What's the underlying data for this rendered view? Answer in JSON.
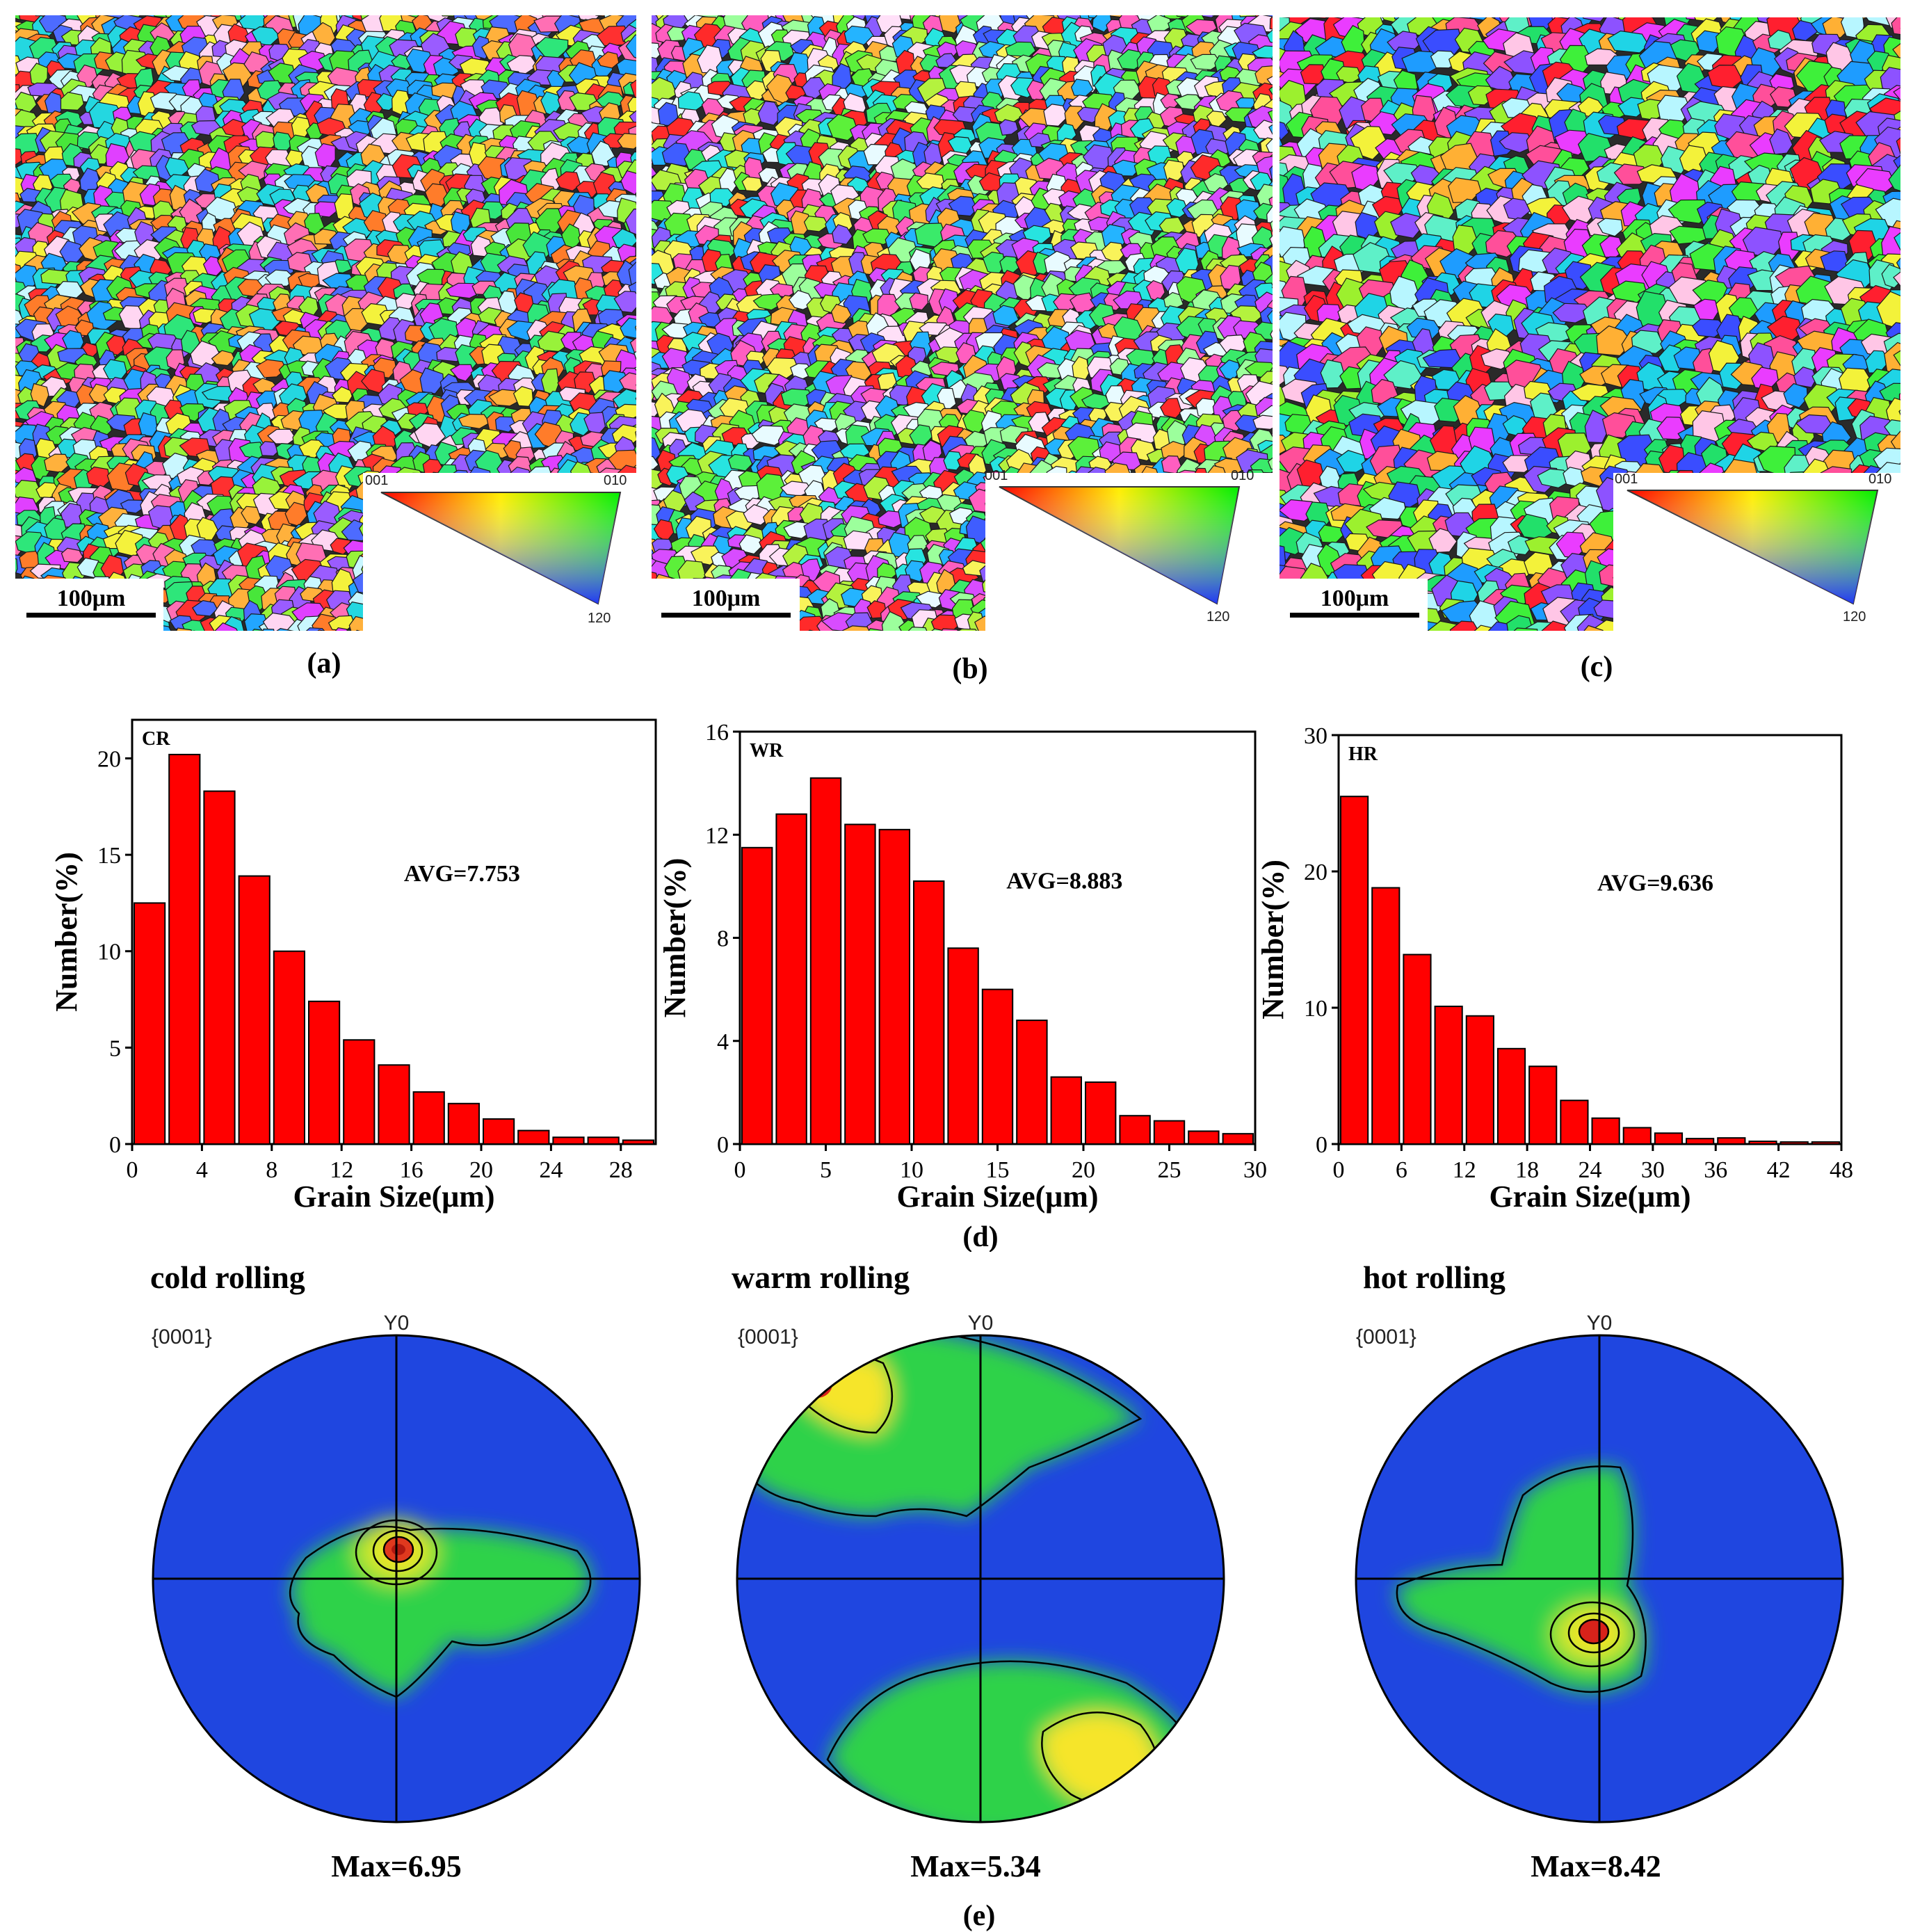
{
  "ebsd_panels": [
    {
      "label": "(a)",
      "scale_bar": "100μm",
      "ipf": {
        "c1": "001",
        "c2": "010",
        "c3": "120"
      }
    },
    {
      "label": "(b)",
      "scale_bar": "100μm",
      "ipf": {
        "c1": "001",
        "c2": "010",
        "c3": "120"
      }
    },
    {
      "label": "(c)",
      "scale_bar": "100μm",
      "ipf": {
        "c1": "001",
        "c2": "010",
        "c3": "120"
      }
    }
  ],
  "histogram_group_label": "(d)",
  "pole_group_label": "(e)",
  "chart_data": [
    {
      "type": "bar",
      "title": "CR",
      "annotation": "AVG=7.753",
      "xlabel": "Grain Size(μm)",
      "ylabel": "Number(%)",
      "bin_width": 2,
      "bin_starts": [
        0,
        2,
        4,
        6,
        8,
        10,
        12,
        14,
        16,
        18,
        20,
        22,
        24,
        26,
        28
      ],
      "values": [
        12.5,
        20.2,
        18.3,
        13.9,
        10.0,
        7.4,
        5.4,
        4.1,
        2.7,
        2.1,
        1.3,
        0.7,
        0.35,
        0.35,
        0.2
      ],
      "xlim": [
        0,
        30
      ],
      "ylim": [
        0,
        22
      ],
      "xticks": [
        0,
        4,
        8,
        12,
        16,
        20,
        24,
        28
      ],
      "yticks": [
        0,
        5,
        10,
        15,
        20
      ]
    },
    {
      "type": "bar",
      "title": "WR",
      "annotation": "AVG=8.883",
      "xlabel": "Grain Size(μm)",
      "ylabel": "Number(%)",
      "bin_width": 2,
      "bin_starts": [
        0,
        2,
        4,
        6,
        8,
        10,
        12,
        14,
        16,
        18,
        20,
        22,
        24,
        26,
        28
      ],
      "values": [
        11.5,
        12.8,
        14.2,
        12.4,
        12.2,
        10.2,
        7.6,
        6.0,
        4.8,
        2.6,
        2.4,
        1.1,
        0.9,
        0.5,
        0.4
      ],
      "xlim": [
        0,
        30
      ],
      "ylim": [
        0,
        16
      ],
      "xticks": [
        0,
        5,
        10,
        15,
        20,
        25,
        30
      ],
      "yticks": [
        0,
        4,
        8,
        12,
        16
      ]
    },
    {
      "type": "bar",
      "title": "HR",
      "annotation": "AVG=9.636",
      "xlabel": "Grain Size(μm)",
      "ylabel": "Number(%)",
      "bin_width": 3,
      "bin_starts": [
        0,
        3,
        6,
        9,
        12,
        15,
        18,
        21,
        24,
        27,
        30,
        33,
        36,
        39,
        42,
        45
      ],
      "values": [
        25.5,
        18.8,
        13.9,
        10.1,
        9.4,
        7.0,
        5.7,
        3.2,
        1.9,
        1.2,
        0.8,
        0.4,
        0.45,
        0.2,
        0.15,
        0.15
      ],
      "xlim": [
        0,
        48
      ],
      "ylim": [
        0,
        30
      ],
      "xticks": [
        0,
        6,
        12,
        18,
        24,
        30,
        36,
        42,
        48
      ],
      "yticks": [
        0,
        10,
        20,
        30
      ]
    }
  ],
  "pole_figures": [
    {
      "process": "cold rolling",
      "plane": "{0001}",
      "axis": "Y0",
      "max_label": "Max=6.95"
    },
    {
      "process": "warm rolling",
      "plane": "{0001}",
      "axis": "Y0",
      "max_label": "Max=5.34"
    },
    {
      "process": "hot rolling",
      "plane": "{0001}",
      "axis": "Y0",
      "max_label": "Max=8.42"
    }
  ],
  "colors": {
    "bar_fill": "#ff0000",
    "bar_stroke": "#000000",
    "pole_bg": "#1f46e0",
    "pole_mid": "#2fd24a",
    "pole_high": "#f6e52c",
    "pole_peak": "#d8221a"
  }
}
